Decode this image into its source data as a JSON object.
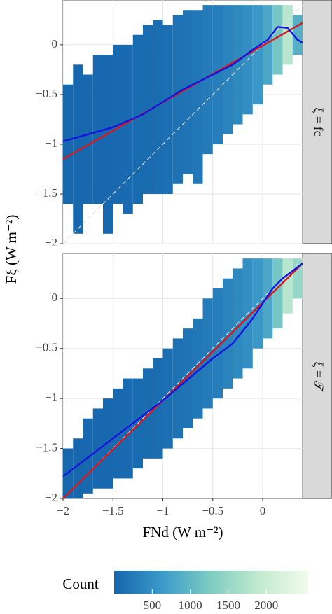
{
  "chart_data": {
    "type": "heatmap",
    "xlabel": "FNd (W m⁻²)",
    "ylabel": "Fξ (W m⁻²)",
    "xlim": [
      -2,
      0.4
    ],
    "ylim": [
      -2,
      0.45
    ],
    "xticks": [
      {
        "value": -2,
        "label": "−2"
      },
      {
        "value": -1.5,
        "label": "−1.5"
      },
      {
        "value": -1,
        "label": "−1"
      },
      {
        "value": -0.5,
        "label": "−0.5"
      },
      0
    ],
    "yticks": [
      {
        "value": -2,
        "label": "−2"
      },
      {
        "value": -1.5,
        "label": "−1.5"
      },
      {
        "value": -1,
        "label": "−1"
      },
      {
        "value": -0.5,
        "label": "−0.5"
      },
      0
    ],
    "grid": true,
    "diagonal": true,
    "x_bins": [
      -2.0,
      -1.9,
      -1.8,
      -1.7,
      -1.6,
      -1.5,
      -1.4,
      -1.3,
      -1.2,
      -1.1,
      -1.0,
      -0.9,
      -0.8,
      -0.7,
      -0.6,
      -0.5,
      -0.4,
      -0.3,
      -0.2,
      -0.1,
      0.0,
      0.1,
      0.2,
      0.3,
      0.4
    ],
    "panels": [
      {
        "strip": "ξ = fc",
        "low": [
          -1.6,
          -1.9,
          -1.6,
          -1.6,
          -1.9,
          -1.6,
          -1.7,
          -1.6,
          -1.5,
          -1.5,
          -1.5,
          -1.4,
          -1.3,
          -1.4,
          -1.1,
          -1.0,
          -0.9,
          -0.8,
          -0.7,
          -0.6,
          -0.4,
          -0.3,
          -0.2,
          -0.1
        ],
        "high": [
          -0.4,
          -0.2,
          -0.3,
          -0.1,
          -0.1,
          0.0,
          0.0,
          0.1,
          0.2,
          0.25,
          0.2,
          0.3,
          0.35,
          0.35,
          0.4,
          0.4,
          0.4,
          0.4,
          0.4,
          0.4,
          0.4,
          0.4,
          0.4,
          0.3
        ],
        "counts": [
          20,
          25,
          30,
          35,
          40,
          50,
          60,
          70,
          80,
          100,
          120,
          150,
          180,
          220,
          260,
          300,
          350,
          420,
          500,
          600,
          800,
          1200,
          1800,
          900
        ],
        "series": [
          {
            "color": "#d7191c",
            "x": [
              -2,
              0.4
            ],
            "values": [
              -1.15,
              0.22
            ]
          },
          {
            "color": "#1414e0",
            "x": [
              -2,
              -1.5,
              -1.2,
              -0.8,
              -0.5,
              -0.3,
              -0.1,
              0.05,
              0.15,
              0.25,
              0.35,
              0.4
            ],
            "values": [
              -0.97,
              -0.83,
              -0.7,
              -0.45,
              -0.3,
              -0.2,
              -0.05,
              0.05,
              0.18,
              0.17,
              0.05,
              0.02
            ]
          }
        ]
      },
      {
        "strip": "ξ = 𝒯",
        "low": [
          -2.0,
          -2.0,
          -1.95,
          -1.9,
          -1.9,
          -1.8,
          -1.8,
          -1.7,
          -1.6,
          -1.6,
          -1.5,
          -1.4,
          -1.3,
          -1.2,
          -1.1,
          -1.0,
          -0.9,
          -0.8,
          -0.7,
          -0.5,
          -0.4,
          -0.3,
          -0.15,
          0.0
        ],
        "high": [
          -1.5,
          -1.4,
          -1.2,
          -1.1,
          -1.0,
          -0.9,
          -0.8,
          -0.8,
          -0.7,
          -0.6,
          -0.5,
          -0.4,
          -0.3,
          -0.2,
          0.0,
          0.1,
          0.2,
          0.3,
          0.4,
          0.4,
          0.4,
          0.4,
          0.4,
          0.4
        ],
        "counts": [
          20,
          25,
          30,
          35,
          40,
          50,
          60,
          70,
          80,
          100,
          120,
          150,
          180,
          220,
          260,
          300,
          350,
          420,
          500,
          600,
          800,
          1200,
          1800,
          1500
        ],
        "series": [
          {
            "color": "#d7191c",
            "x": [
              -2,
              0.4
            ],
            "values": [
              -2,
              0.35
            ]
          },
          {
            "color": "#1414e0",
            "x": [
              -2,
              -1.5,
              -1,
              -0.5,
              -0.3,
              -0.1,
              0,
              0.1,
              0.2,
              0.4
            ],
            "values": [
              -1.78,
              -1.4,
              -1.02,
              -0.6,
              -0.45,
              -0.2,
              -0.05,
              0.1,
              0.2,
              0.35
            ]
          }
        ]
      }
    ],
    "colorbar": {
      "label": "Count",
      "lim": [
        0,
        2550
      ],
      "ticks": [
        500,
        1000,
        1500,
        2000
      ],
      "colors": [
        "#1565ad",
        "#3b9bc9",
        "#7fccc2",
        "#c3eacf",
        "#f2fbec"
      ]
    }
  }
}
